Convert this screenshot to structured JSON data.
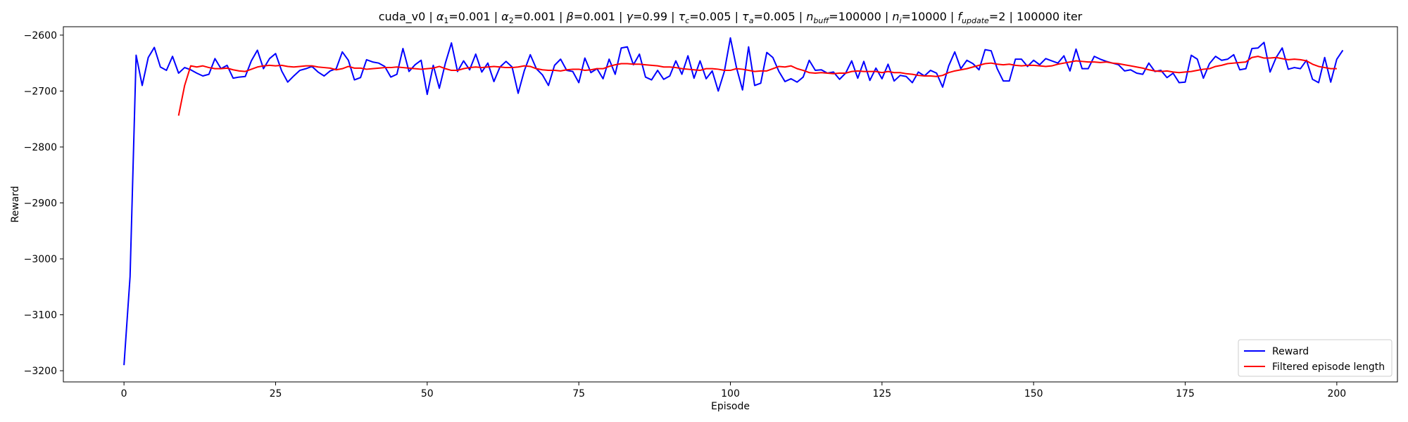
{
  "chart_data": {
    "type": "line",
    "title": {
      "segments": [
        {
          "t": "cuda_v0 | "
        },
        {
          "t": "α",
          "i": true
        },
        {
          "t": "1",
          "sub": true
        },
        {
          "t": "=0.001 | "
        },
        {
          "t": "α",
          "i": true
        },
        {
          "t": "2",
          "sub": true
        },
        {
          "t": "=0.001 | "
        },
        {
          "t": "β",
          "i": true
        },
        {
          "t": "=0.001 | "
        },
        {
          "t": "γ",
          "i": true
        },
        {
          "t": "=0.99 | "
        },
        {
          "t": "τ",
          "i": true
        },
        {
          "t": "c",
          "sub": true,
          "i": true
        },
        {
          "t": "=0.005 | "
        },
        {
          "t": "τ",
          "i": true
        },
        {
          "t": "a",
          "sub": true,
          "i": true
        },
        {
          "t": "=0.005 | "
        },
        {
          "t": "n",
          "i": true
        },
        {
          "t": "buff",
          "sub": true,
          "i": true
        },
        {
          "t": "=100000 | "
        },
        {
          "t": "n",
          "i": true
        },
        {
          "t": "i",
          "sub": true,
          "i": true
        },
        {
          "t": "=10000 | "
        },
        {
          "t": "f",
          "i": true
        },
        {
          "t": "update",
          "sub": true,
          "i": true
        },
        {
          "t": "=2 | 100000 iter"
        }
      ]
    },
    "xlabel": "Episode",
    "ylabel": "Reward",
    "xlim": [
      -10,
      210
    ],
    "ylim": [
      -3220,
      -2585
    ],
    "xticks": [
      0,
      25,
      50,
      75,
      100,
      125,
      150,
      175,
      200
    ],
    "yticks": [
      -3200,
      -3100,
      -3000,
      -2900,
      -2800,
      -2700,
      -2600
    ],
    "grid": false,
    "legend": {
      "position": "bottom-right"
    },
    "series": [
      {
        "name": "Reward",
        "color": "#0000ff",
        "x_start": 0,
        "values": [
          -3190,
          -3032,
          -2636,
          -2690,
          -2640,
          -2622,
          -2657,
          -2663,
          -2638,
          -2668,
          -2658,
          -2662,
          -2668,
          -2673,
          -2670,
          -2642,
          -2660,
          -2654,
          -2677,
          -2675,
          -2674,
          -2646,
          -2627,
          -2660,
          -2642,
          -2633,
          -2664,
          -2684,
          -2673,
          -2663,
          -2660,
          -2656,
          -2666,
          -2673,
          -2664,
          -2660,
          -2630,
          -2645,
          -2680,
          -2676,
          -2644,
          -2648,
          -2650,
          -2656,
          -2675,
          -2670,
          -2624,
          -2665,
          -2653,
          -2645,
          -2706,
          -2654,
          -2695,
          -2650,
          -2614,
          -2665,
          -2646,
          -2662,
          -2634,
          -2666,
          -2650,
          -2683,
          -2657,
          -2647,
          -2657,
          -2704,
          -2664,
          -2635,
          -2660,
          -2671,
          -2690,
          -2654,
          -2643,
          -2663,
          -2665,
          -2685,
          -2641,
          -2667,
          -2660,
          -2678,
          -2643,
          -2670,
          -2623,
          -2621,
          -2653,
          -2634,
          -2675,
          -2680,
          -2663,
          -2679,
          -2673,
          -2646,
          -2670,
          -2637,
          -2677,
          -2646,
          -2678,
          -2664,
          -2700,
          -2665,
          -2605,
          -2658,
          -2698,
          -2621,
          -2690,
          -2686,
          -2631,
          -2640,
          -2665,
          -2683,
          -2678,
          -2684,
          -2675,
          -2645,
          -2663,
          -2662,
          -2668,
          -2666,
          -2679,
          -2668,
          -2646,
          -2677,
          -2647,
          -2681,
          -2659,
          -2678,
          -2652,
          -2682,
          -2672,
          -2674,
          -2685,
          -2666,
          -2673,
          -2663,
          -2668,
          -2693,
          -2655,
          -2630,
          -2660,
          -2645,
          -2651,
          -2662,
          -2626,
          -2628,
          -2660,
          -2682,
          -2682,
          -2643,
          -2643,
          -2656,
          -2645,
          -2653,
          -2642,
          -2646,
          -2650,
          -2637,
          -2664,
          -2625,
          -2660,
          -2660,
          -2638,
          -2643,
          -2647,
          -2650,
          -2653,
          -2664,
          -2662,
          -2668,
          -2670,
          -2650,
          -2665,
          -2663,
          -2676,
          -2668,
          -2685,
          -2684,
          -2636,
          -2643,
          -2677,
          -2651,
          -2638,
          -2645,
          -2643,
          -2635,
          -2662,
          -2660,
          -2624,
          -2623,
          -2613,
          -2666,
          -2640,
          -2623,
          -2661,
          -2658,
          -2660,
          -2645,
          -2679,
          -2685,
          -2640,
          -2684,
          -2643,
          -2627
        ]
      },
      {
        "name": "Filtered episode length",
        "color": "#ff0000",
        "x_start": 9,
        "values": [
          -2744,
          -2690,
          -2655,
          -2657,
          -2655,
          -2658,
          -2660,
          -2660,
          -2659,
          -2662,
          -2664,
          -2665,
          -2661,
          -2657,
          -2655,
          -2654,
          -2655,
          -2654,
          -2656,
          -2657,
          -2656,
          -2655,
          -2655,
          -2657,
          -2658,
          -2659,
          -2662,
          -2660,
          -2656,
          -2659,
          -2659,
          -2661,
          -2660,
          -2659,
          -2658,
          -2658,
          -2657,
          -2658,
          -2659,
          -2660,
          -2661,
          -2660,
          -2659,
          -2656,
          -2660,
          -2663,
          -2663,
          -2660,
          -2658,
          -2657,
          -2658,
          -2657,
          -2656,
          -2657,
          -2658,
          -2658,
          -2657,
          -2655,
          -2656,
          -2660,
          -2662,
          -2663,
          -2663,
          -2664,
          -2662,
          -2661,
          -2661,
          -2663,
          -2662,
          -2660,
          -2660,
          -2656,
          -2653,
          -2651,
          -2651,
          -2652,
          -2652,
          -2653,
          -2654,
          -2655,
          -2657,
          -2657,
          -2658,
          -2660,
          -2661,
          -2662,
          -2663,
          -2660,
          -2660,
          -2661,
          -2663,
          -2663,
          -2660,
          -2661,
          -2663,
          -2665,
          -2664,
          -2664,
          -2660,
          -2656,
          -2657,
          -2655,
          -2660,
          -2663,
          -2667,
          -2668,
          -2667,
          -2668,
          -2669,
          -2668,
          -2668,
          -2665,
          -2664,
          -2665,
          -2665,
          -2665,
          -2667,
          -2665,
          -2667,
          -2667,
          -2669,
          -2670,
          -2672,
          -2673,
          -2673,
          -2674,
          -2672,
          -2667,
          -2664,
          -2662,
          -2660,
          -2657,
          -2654,
          -2651,
          -2650,
          -2652,
          -2653,
          -2652,
          -2654,
          -2655,
          -2654,
          -2654,
          -2655,
          -2656,
          -2655,
          -2652,
          -2650,
          -2648,
          -2646,
          -2647,
          -2648,
          -2648,
          -2649,
          -2648,
          -2650,
          -2651,
          -2653,
          -2655,
          -2657,
          -2659,
          -2662,
          -2664,
          -2665,
          -2664,
          -2666,
          -2667,
          -2666,
          -2665,
          -2663,
          -2661,
          -2660,
          -2656,
          -2654,
          -2651,
          -2650,
          -2649,
          -2648,
          -2640,
          -2638,
          -2641,
          -2641,
          -2640,
          -2642,
          -2644,
          -2643,
          -2644,
          -2646,
          -2652,
          -2656,
          -2658,
          -2660,
          -2660
        ]
      }
    ]
  }
}
